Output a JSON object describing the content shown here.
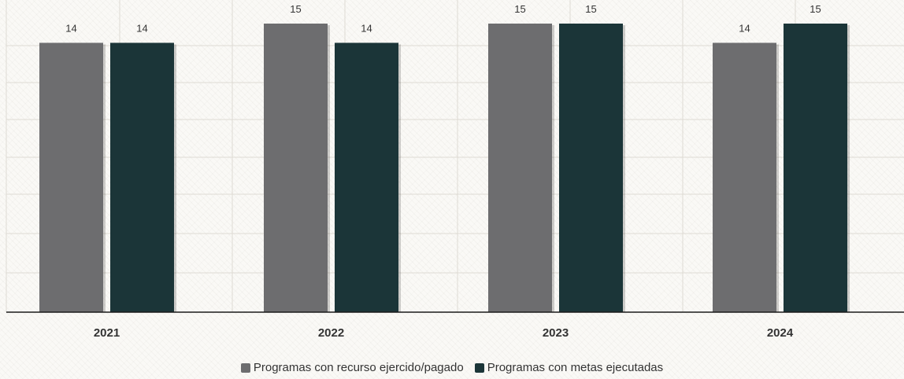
{
  "chart_data": {
    "type": "bar",
    "title": "",
    "xlabel": "",
    "ylabel": "",
    "categories": [
      "2021",
      "2022",
      "2023",
      "2024"
    ],
    "series": [
      {
        "name": "Programas con recurso ejercido/pagado",
        "values": [
          14,
          15,
          15,
          14
        ],
        "color": "#6d6d6f"
      },
      {
        "name": "Programas con metas ejecutadas",
        "values": [
          14,
          14,
          15,
          15
        ],
        "color": "#1b3538"
      }
    ],
    "ylim": [
      0,
      15
    ],
    "grid": true,
    "legend": "bottom-center",
    "data_labels": true
  }
}
